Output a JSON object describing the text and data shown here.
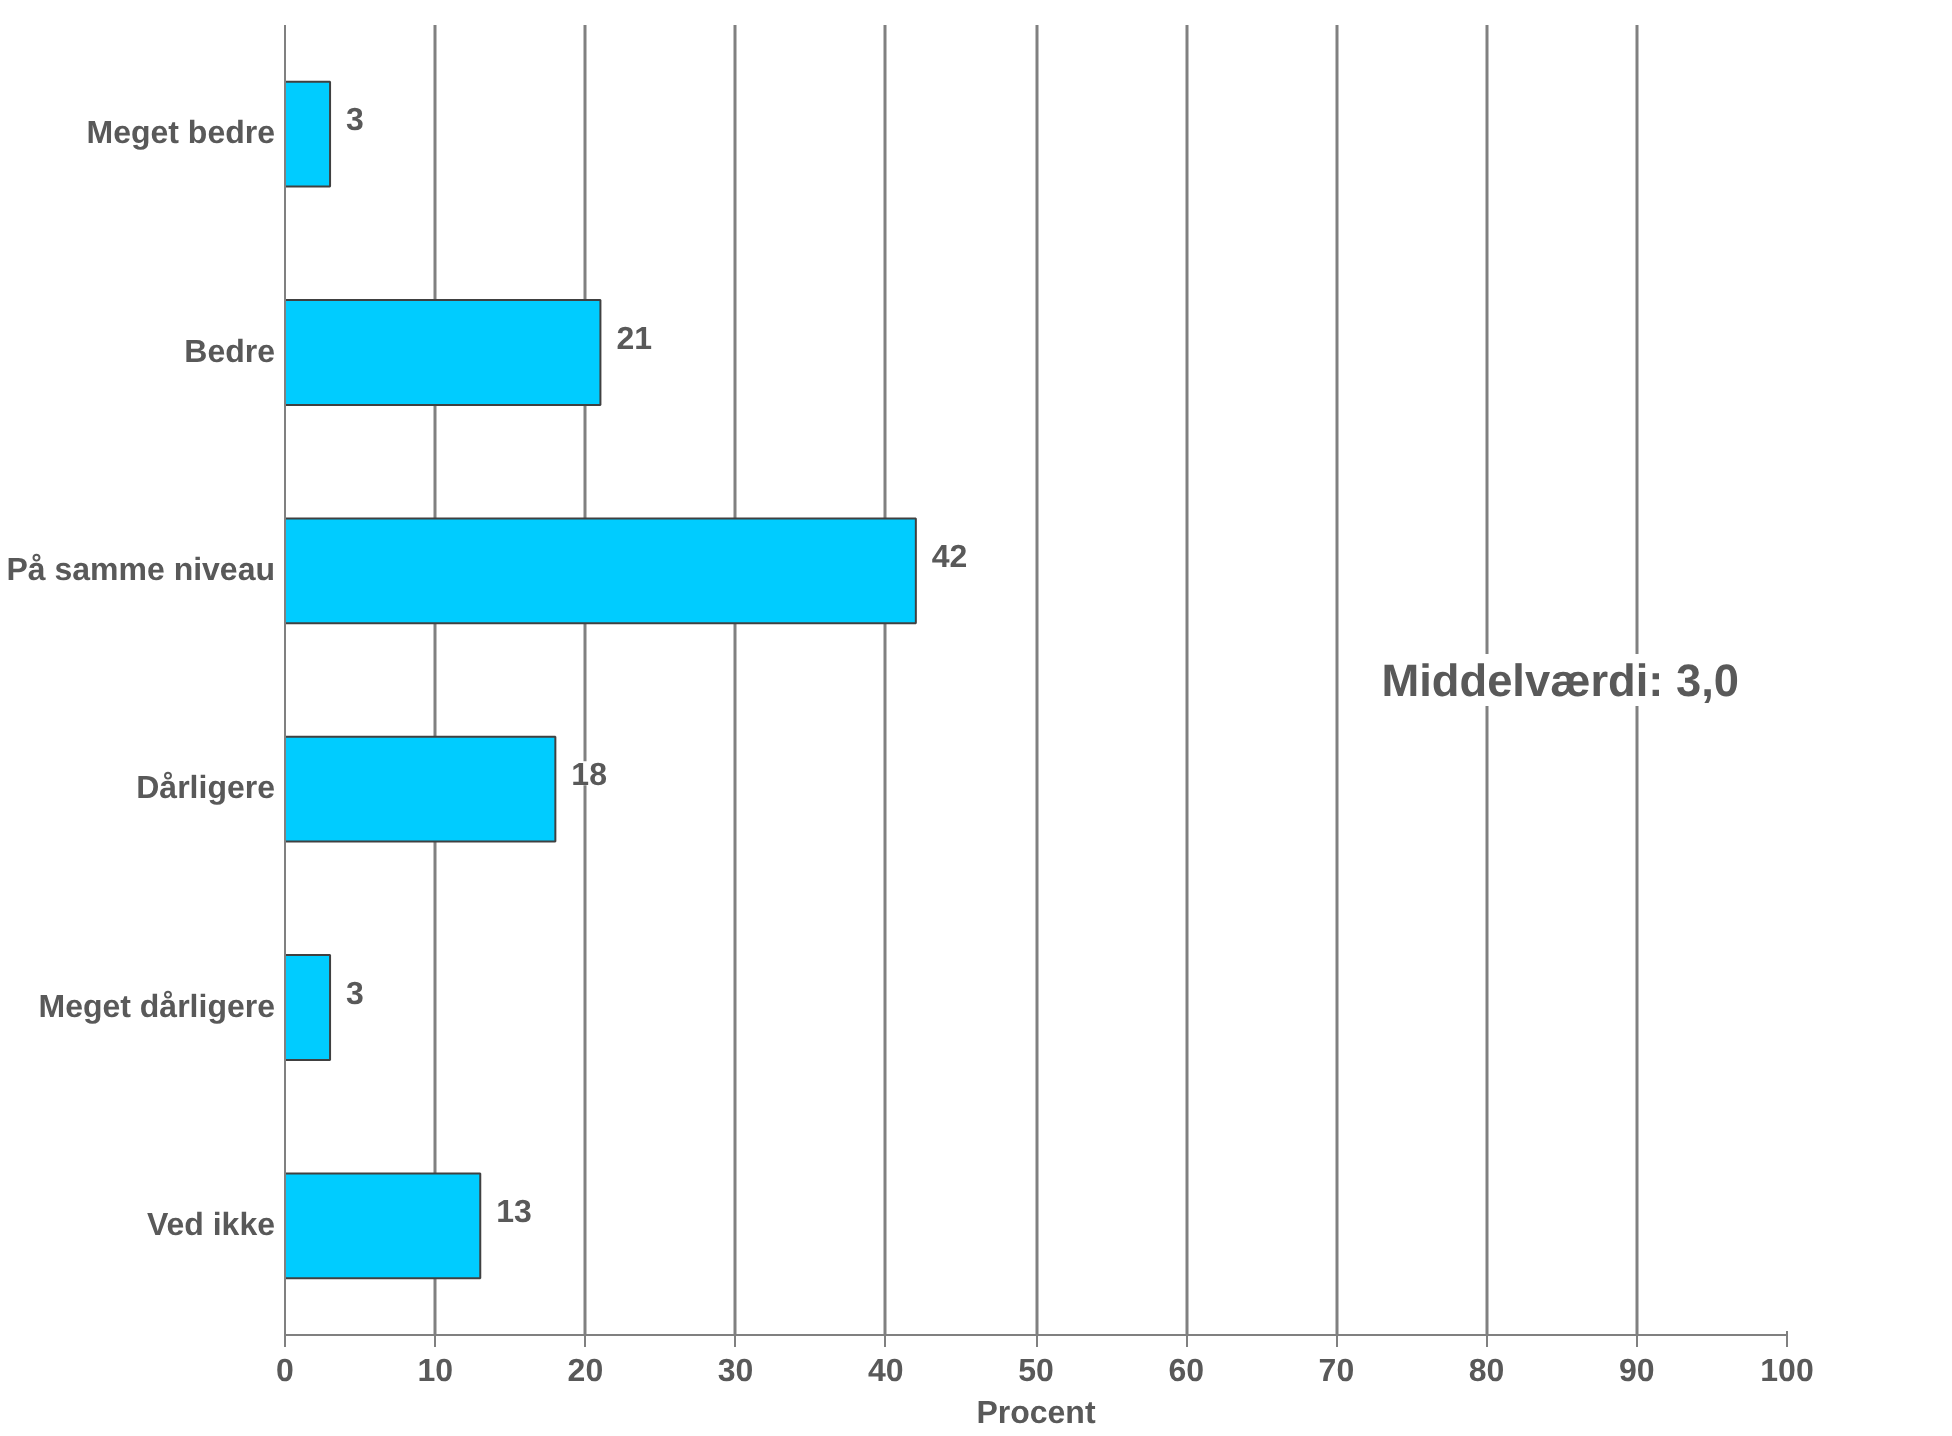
{
  "chart_data": {
    "type": "bar",
    "orientation": "horizontal",
    "xlabel": "Procent",
    "categories": [
      "Meget bedre",
      "Bedre",
      "På samme niveau",
      "Dårligere",
      "Meget dårligere",
      "Ved ikke"
    ],
    "values": [
      3,
      21,
      42,
      18,
      3,
      13
    ],
    "color": "#00ccff",
    "data_labels": true,
    "xlim": [
      0,
      100
    ],
    "xticks": [
      0,
      10,
      20,
      30,
      40,
      50,
      60,
      70,
      80,
      90,
      100
    ],
    "grid": "x",
    "annotations": [
      "Middelværdi: 3,0"
    ]
  }
}
